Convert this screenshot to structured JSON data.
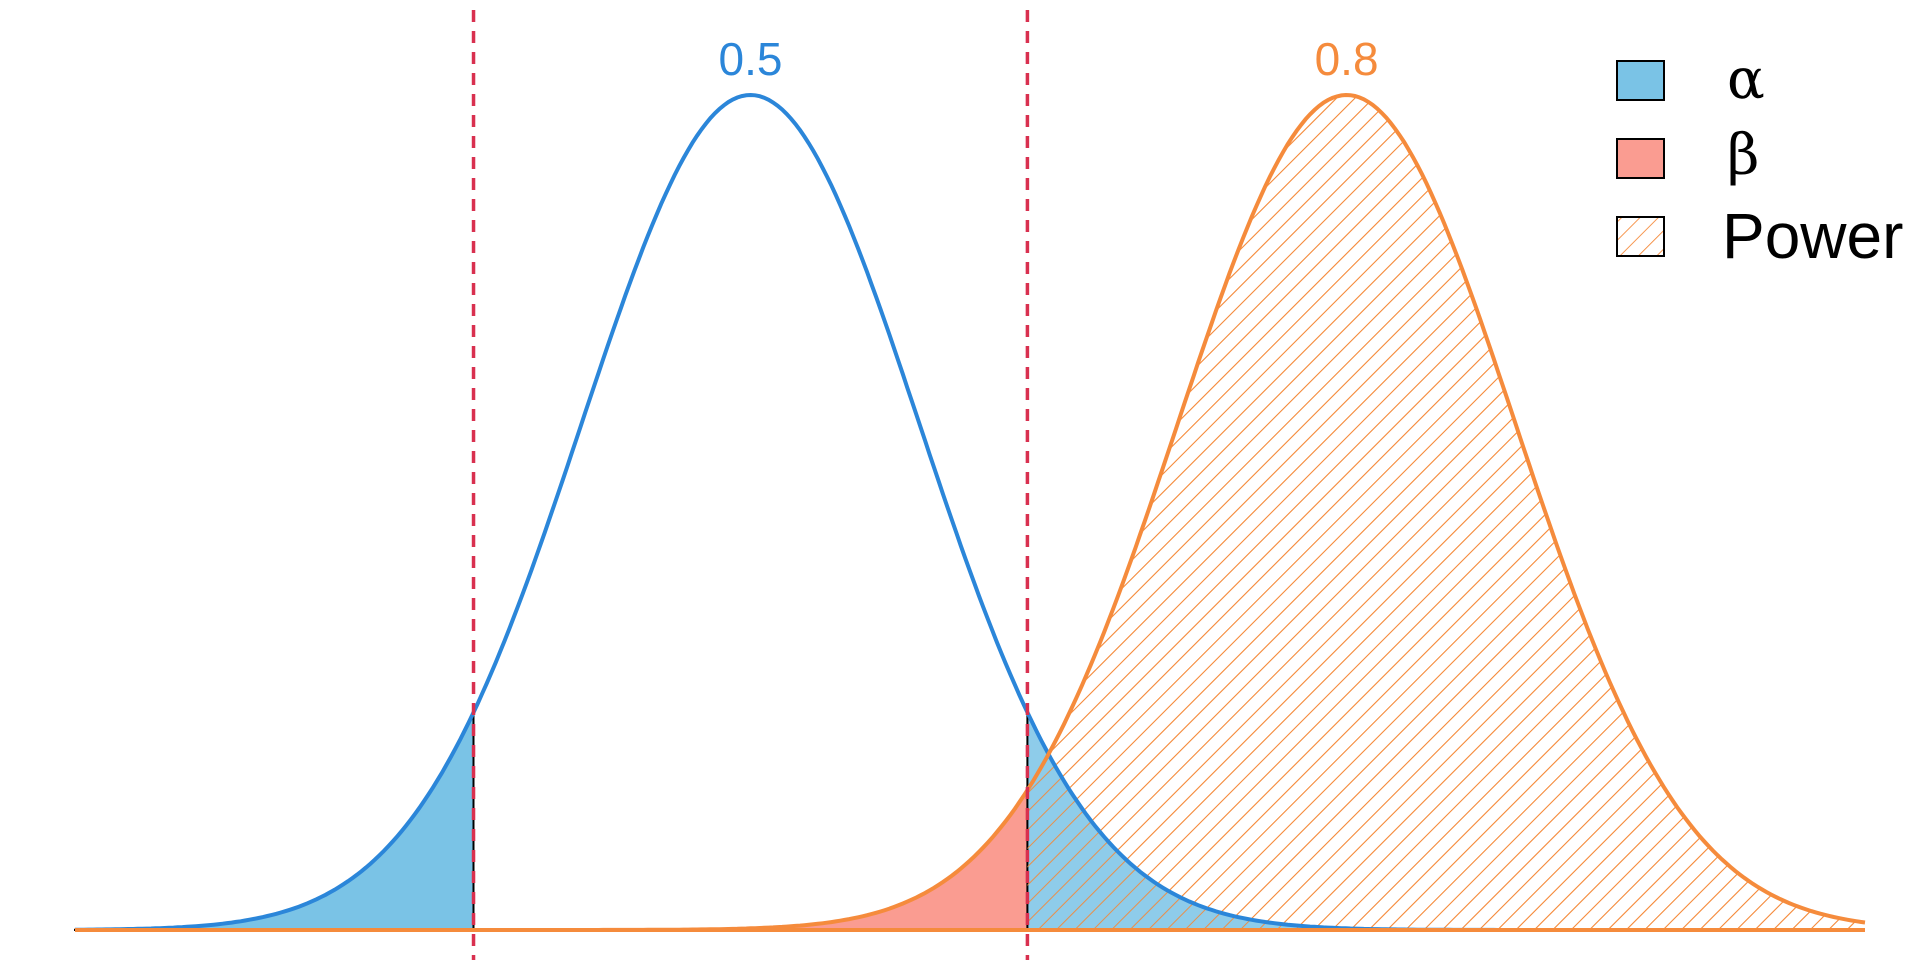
{
  "colors": {
    "null_curve": "#2b86d9",
    "alt_curve": "#f58b3c",
    "alpha_fill": "#7ac3e6",
    "beta_fill": "#fa9c91",
    "power_hatch": "#f58b3c",
    "critical_line": "#d9304f",
    "outline": "#000000"
  },
  "chart_data": {
    "type": "area",
    "xlim": [
      -4.0,
      6.6
    ],
    "ylim": [
      0,
      0.4
    ],
    "grid": false,
    "axes_visible": false,
    "series": [
      {
        "distribution": "normal",
        "mean": 0.0,
        "sd": 1.0,
        "peak_label": "0.5"
      },
      {
        "distribution": "normal",
        "mean": 3.53,
        "sd": 1.0,
        "peak_label": "0.8"
      }
    ],
    "critical_values": [
      -1.64,
      1.64
    ],
    "legend": {
      "position": "top-right",
      "entries": [
        {
          "label": "α",
          "fill": "alpha"
        },
        {
          "label": "β",
          "fill": "beta"
        },
        {
          "label": "Power",
          "fill": "power"
        }
      ]
    }
  }
}
